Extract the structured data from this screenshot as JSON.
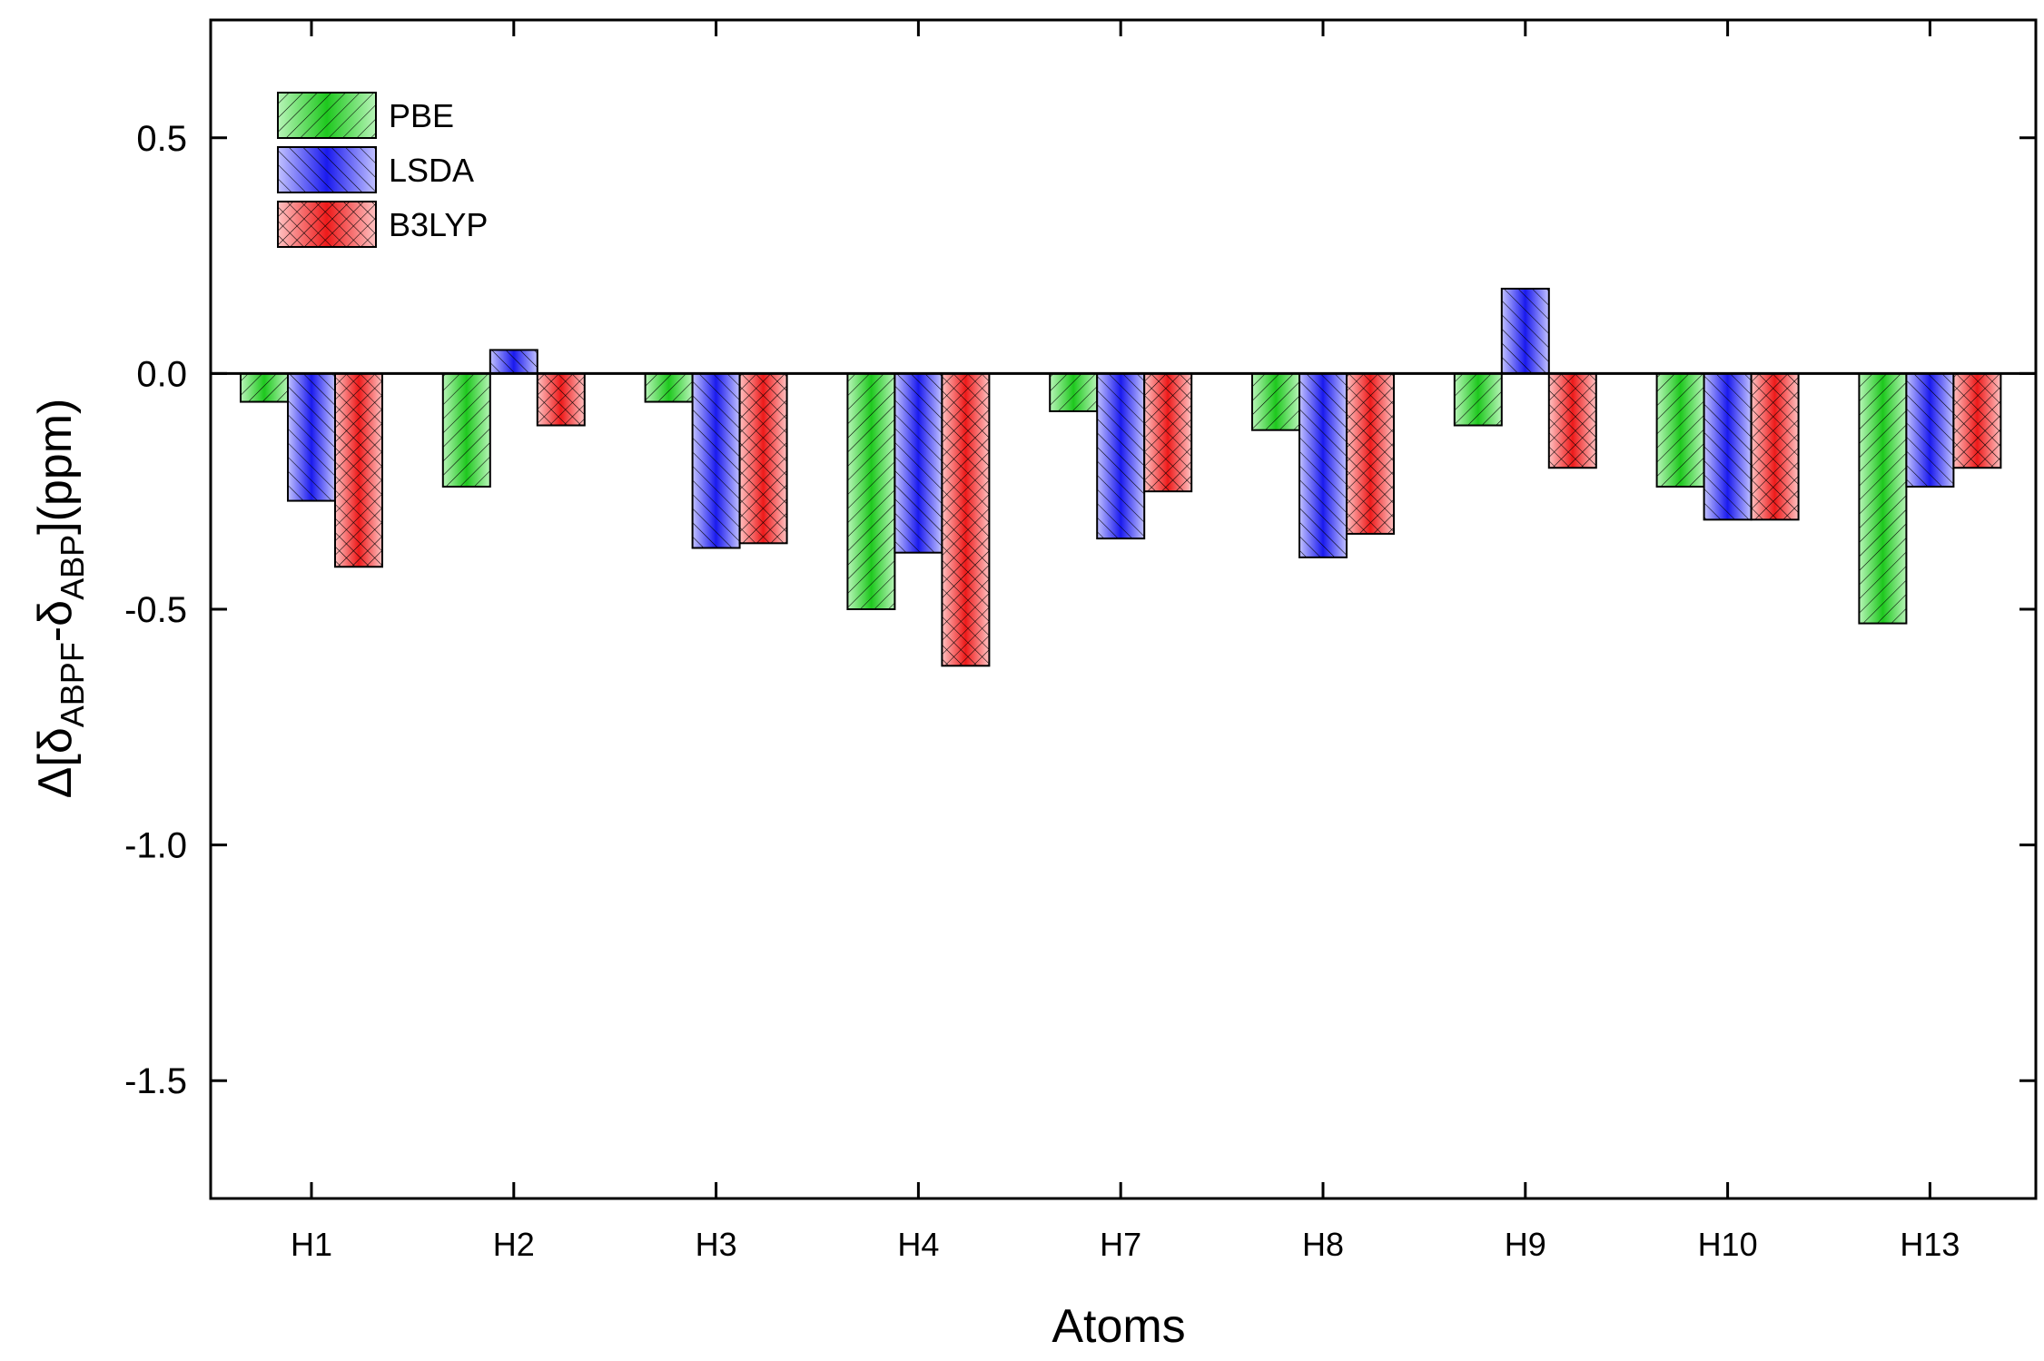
{
  "chart_data": {
    "type": "bar",
    "xlabel": "Atoms",
    "ylabel": {
      "prefix": "Δ[δ",
      "sub1": "ABPF",
      "mid": "-δ",
      "sub2": "ABP",
      "suffix": "](ppm)"
    },
    "categories": [
      "H1",
      "H2",
      "H3",
      "H4",
      "H7",
      "H8",
      "H9",
      "H10",
      "H13"
    ],
    "series": [
      {
        "name": "PBE",
        "color": "#22cc22",
        "values": [
          -0.06,
          -0.24,
          -0.06,
          -0.5,
          -0.08,
          -0.12,
          -0.11,
          -0.24,
          -0.53
        ]
      },
      {
        "name": "LSDA",
        "color": "#2a2af0",
        "values": [
          -0.27,
          0.05,
          -0.37,
          -0.38,
          -0.35,
          -0.39,
          0.18,
          -0.31,
          -0.24
        ]
      },
      {
        "name": "B3LYP",
        "color": "#f02828",
        "values": [
          -0.41,
          -0.11,
          -0.36,
          -0.62,
          -0.25,
          -0.34,
          -0.2,
          -0.31,
          -0.2
        ]
      }
    ],
    "ylim": [
      -1.75,
      0.75
    ],
    "yticks": [
      "0.5",
      "0.0",
      "-0.5",
      "-1.0",
      "-1.5"
    ],
    "ytick_values": [
      0.5,
      0.0,
      -0.5,
      -1.0,
      -1.5
    ],
    "legend_placement": "top-left",
    "grid": false,
    "zero_line": true
  }
}
